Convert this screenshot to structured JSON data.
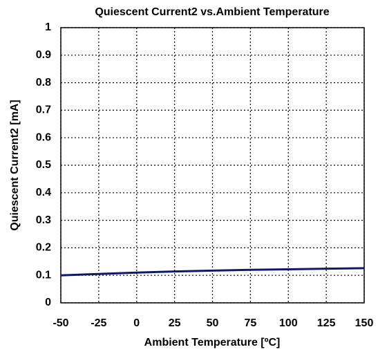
{
  "chart_data": {
    "type": "line",
    "title": "Quiescent Current2 vs.Ambient Temperature",
    "x_label": "Ambient Temperature [ºC]",
    "y_label": "Quiescent Current2 [mA]",
    "x": [
      -50,
      -25,
      0,
      25,
      50,
      75,
      100,
      125,
      150
    ],
    "series": [
      {
        "color": "#0d1a6b",
        "values": [
          0.1,
          0.105,
          0.11,
          0.114,
          0.117,
          0.12,
          0.122,
          0.124,
          0.126
        ]
      }
    ],
    "xlim": [
      -50,
      150
    ],
    "xticks": [
      -50,
      -25,
      0,
      25,
      50,
      75,
      100,
      125,
      150
    ],
    "ylim": [
      0,
      1
    ],
    "yticks": [
      0,
      0.1,
      0.2,
      0.3,
      0.4,
      0.5,
      0.6,
      0.7,
      0.8,
      0.9,
      1
    ],
    "grid": true
  }
}
